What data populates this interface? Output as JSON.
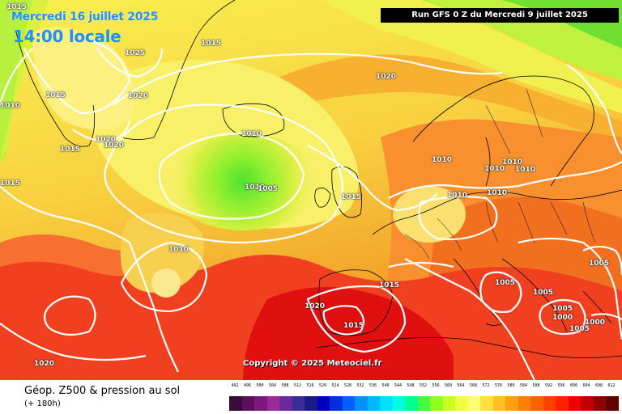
{
  "title": {
    "date": "Mercredi 16 juillet 2025",
    "time": "14:00 locale"
  },
  "run_info": "Run GFS 0 Z du Mercredi 9 juillet 2025",
  "copyright": "Copyright © 2025 Meteociel.fr",
  "footer": {
    "title": "Géop. Z500 & pression au sol",
    "subtitle": "(+ 180h)"
  },
  "isobar_labels": [
    "1015",
    "1025",
    "1015",
    "1020",
    "1010",
    "1015",
    "1020",
    "1020",
    "1020",
    "1010",
    "1015",
    "1010",
    "1005",
    "1015",
    "1010",
    "1010",
    "1010",
    "1010",
    "1010",
    "1005",
    "1015",
    "1010",
    "1005",
    "1005",
    "1020",
    "1015",
    "1015",
    "1005",
    "1000",
    "1000",
    "1005",
    "1020",
    "1010"
  ],
  "color_scale": {
    "ticks": [
      "492",
      "496",
      "500",
      "504",
      "508",
      "512",
      "516",
      "520",
      "524",
      "528",
      "532",
      "536",
      "540",
      "544",
      "548",
      "552",
      "556",
      "560",
      "564",
      "568",
      "572",
      "576",
      "580",
      "584",
      "588",
      "592",
      "596",
      "600",
      "604",
      "608",
      "612"
    ],
    "colors": [
      "#3a0a3a",
      "#5a0f5a",
      "#7a1a7a",
      "#9a2a9a",
      "#6a2a9a",
      "#3a2a9a",
      "#1a1a8a",
      "#0000c0",
      "#0030e0",
      "#0060ff",
      "#0090ff",
      "#00b8ff",
      "#00e0ff",
      "#00ffe0",
      "#00ff90",
      "#40ff40",
      "#90ff20",
      "#c8ff20",
      "#f0ff40",
      "#ffff70",
      "#ffe040",
      "#ffc020",
      "#ffa010",
      "#ff8000",
      "#ff6000",
      "#ff4000",
      "#ff2000",
      "#ee0000",
      "#c00000",
      "#900000",
      "#600000"
    ]
  }
}
